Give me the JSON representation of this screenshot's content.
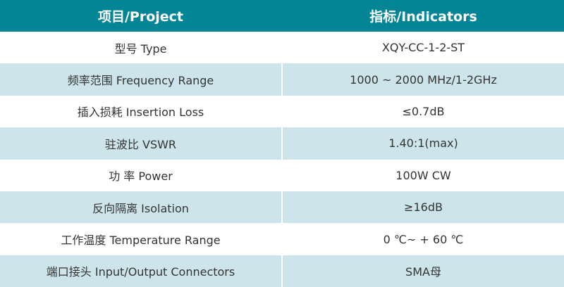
{
  "header": {
    "col1": "项目/Project",
    "col2": "指标/Indicators"
  },
  "colors": {
    "header_bg": "#048595",
    "alt_row_bg": "#cde5ea"
  },
  "rows": [
    {
      "project": "型号 Type",
      "indicator": "XQY-CC-1-2-ST"
    },
    {
      "project": "频率范围 Frequency Range",
      "indicator": "1000 ~ 2000 MHz/1-2GHz"
    },
    {
      "project": "插入损耗 Insertion Loss",
      "indicator": "≤0.7dB"
    },
    {
      "project": "驻波比 VSWR",
      "indicator": "1.40:1(max)"
    },
    {
      "project": "功 率 Power",
      "indicator": "100W CW"
    },
    {
      "project": "反向隔离 Isolation",
      "indicator": "≥16dB"
    },
    {
      "project": "工作温度 Temperature Range",
      "indicator": "0 ℃~ + 60 ℃"
    },
    {
      "project": "端口接头 Input/Output Connectors",
      "indicator": "SMA母"
    }
  ]
}
